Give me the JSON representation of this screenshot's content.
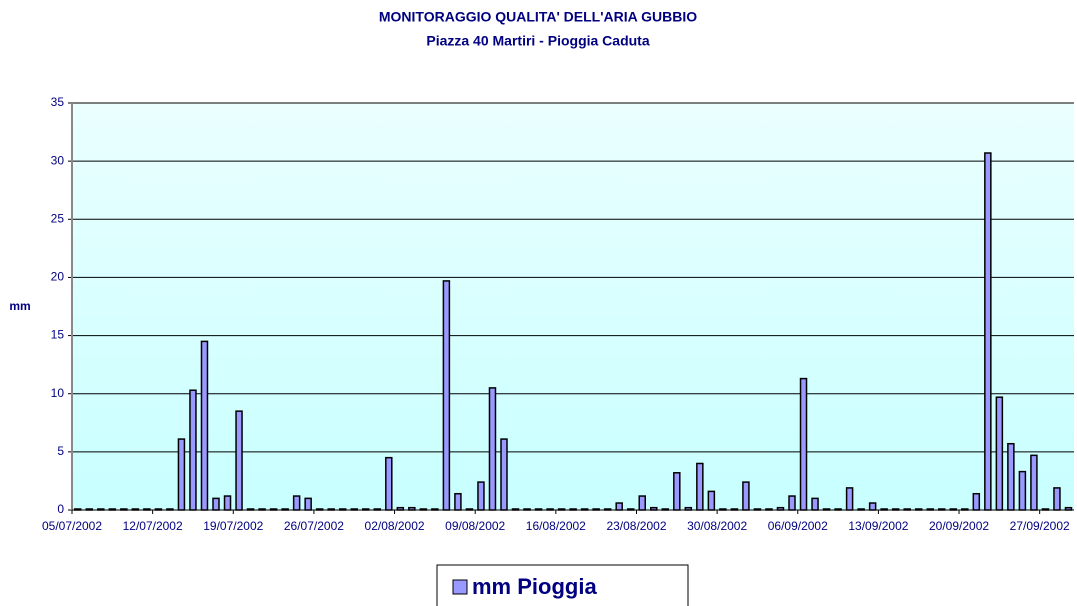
{
  "chart_data": {
    "type": "bar",
    "title": "MONITORAGGIO QUALITA' DELL'ARIA GUBBIO",
    "subtitle": "Piazza 40 Martiri - Pioggia Caduta",
    "y_label": "mm",
    "categories": [
      "05/07/2002",
      null,
      null,
      null,
      null,
      null,
      null,
      "12/07/2002",
      null,
      null,
      null,
      null,
      null,
      null,
      "19/07/2002",
      null,
      null,
      null,
      null,
      null,
      null,
      "26/07/2002",
      null,
      null,
      null,
      null,
      null,
      null,
      "02/08/2002",
      null,
      null,
      null,
      null,
      null,
      null,
      "09/08/2002",
      null,
      null,
      null,
      null,
      null,
      null,
      "16/08/2002",
      null,
      null,
      null,
      null,
      null,
      null,
      "23/08/2002",
      null,
      null,
      null,
      null,
      null,
      null,
      "30/08/2002",
      null,
      null,
      null,
      null,
      null,
      null,
      "06/09/2002",
      null,
      null,
      null,
      null,
      null,
      null,
      "13/09/2002",
      null,
      null,
      null,
      null,
      null,
      null,
      "20/09/2002",
      null,
      null,
      null,
      null,
      null,
      null,
      "27/09/2002",
      null,
      null
    ],
    "series": [
      {
        "name": "mm Pioggia",
        "color": "#9999ff",
        "values": [
          0,
          0,
          0,
          0,
          0,
          0,
          0,
          0,
          0,
          6.1,
          10.3,
          14.5,
          1.0,
          1.2,
          8.5,
          0,
          0,
          0,
          0,
          1.2,
          1.0,
          0,
          0,
          0,
          0,
          0,
          0,
          4.5,
          0.2,
          0.2,
          0,
          0,
          19.7,
          1.4,
          0,
          2.4,
          10.5,
          6.1,
          0,
          0,
          0,
          0,
          0,
          0,
          0,
          0,
          0,
          0.6,
          0,
          1.2,
          0.2,
          0,
          3.2,
          0.2,
          4.0,
          1.6,
          0,
          0,
          2.4,
          0,
          0,
          0.2,
          1.2,
          11.3,
          1.0,
          0,
          0,
          1.9,
          0,
          0.6,
          0,
          0,
          0,
          0,
          0,
          0,
          0,
          0,
          1.4,
          30.7,
          9.7,
          5.7,
          3.3,
          4.7,
          0,
          1.9,
          0.2
        ]
      }
    ],
    "ylim": [
      0,
      35
    ],
    "yticks": [
      0,
      5,
      10,
      15,
      20,
      25,
      30,
      35
    ],
    "grid": true,
    "legend": "bottom"
  }
}
